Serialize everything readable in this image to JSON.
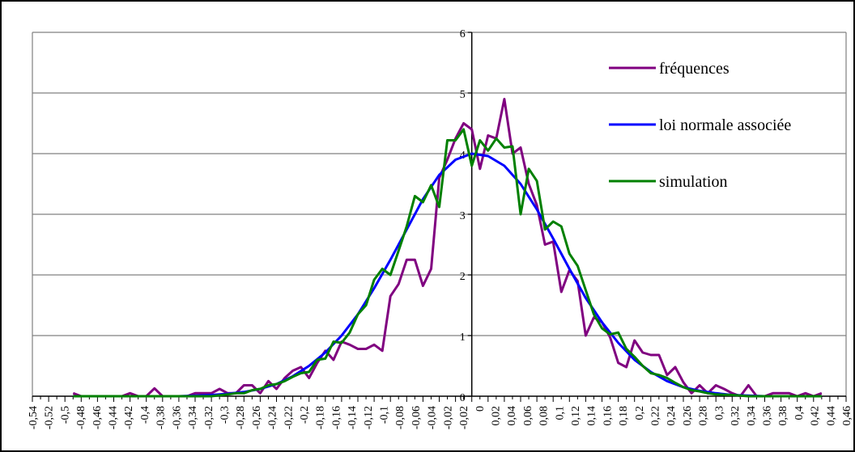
{
  "chart_data": {
    "type": "line",
    "title": "",
    "xlabel": "",
    "ylabel": "",
    "xlim": [
      -0.54,
      0.46
    ],
    "ylim": [
      0,
      6
    ],
    "grid": true,
    "legend_position": "top-right",
    "y_ticks": [
      "0",
      "1",
      "2",
      "3",
      "4",
      "5",
      "6"
    ],
    "x_ticks": [
      "-0,54",
      "-0,52",
      "-0,5",
      "-0,48",
      "-0,46",
      "-0,44",
      "-0,42",
      "-0,4",
      "-0,38",
      "-0,36",
      "-0,34",
      "-0,32",
      "-0,3",
      "-0,28",
      "-0,26",
      "-0,24",
      "-0,22",
      "-0,2",
      "-0,18",
      "-0,16",
      "-0,14",
      "-0,12",
      "-0,1",
      "-0,08",
      "-0,06",
      "-0,04",
      "-0,02",
      "-0,02",
      "0",
      "0,02",
      "0,04",
      "0,06",
      "0,08",
      "0,1",
      "0,12",
      "0,14",
      "0,16",
      "0,18",
      "0,2",
      "0,22",
      "0,24",
      "0,26",
      "0,28",
      "0,3",
      "0,32",
      "0,34",
      "0,36",
      "0,38",
      "0,4",
      "0,42",
      "0,44",
      "0,46"
    ],
    "series": [
      {
        "name": "fréquences",
        "color": "#800080",
        "points": [
          [
            -0.49,
            0.05
          ],
          [
            -0.48,
            0
          ],
          [
            -0.47,
            0
          ],
          [
            -0.46,
            0
          ],
          [
            -0.45,
            0
          ],
          [
            -0.44,
            0
          ],
          [
            -0.43,
            0
          ],
          [
            -0.42,
            0.05
          ],
          [
            -0.41,
            0
          ],
          [
            -0.4,
            0
          ],
          [
            -0.39,
            0.13
          ],
          [
            -0.38,
            0
          ],
          [
            -0.37,
            0
          ],
          [
            -0.36,
            0
          ],
          [
            -0.35,
            0
          ],
          [
            -0.34,
            0.05
          ],
          [
            -0.33,
            0.05
          ],
          [
            -0.32,
            0.05
          ],
          [
            -0.31,
            0.12
          ],
          [
            -0.3,
            0.05
          ],
          [
            -0.29,
            0.05
          ],
          [
            -0.28,
            0.18
          ],
          [
            -0.27,
            0.18
          ],
          [
            -0.26,
            0.05
          ],
          [
            -0.25,
            0.25
          ],
          [
            -0.24,
            0.12
          ],
          [
            -0.23,
            0.3
          ],
          [
            -0.22,
            0.42
          ],
          [
            -0.21,
            0.48
          ],
          [
            -0.2,
            0.3
          ],
          [
            -0.19,
            0.55
          ],
          [
            -0.18,
            0.75
          ],
          [
            -0.17,
            0.6
          ],
          [
            -0.16,
            0.9
          ],
          [
            -0.15,
            0.85
          ],
          [
            -0.14,
            0.78
          ],
          [
            -0.13,
            0.78
          ],
          [
            -0.12,
            0.85
          ],
          [
            -0.11,
            0.75
          ],
          [
            -0.1,
            1.65
          ],
          [
            -0.09,
            1.85
          ],
          [
            -0.08,
            2.25
          ],
          [
            -0.07,
            2.25
          ],
          [
            -0.06,
            1.82
          ],
          [
            -0.05,
            2.1
          ],
          [
            -0.04,
            3.6
          ],
          [
            -0.03,
            3.9
          ],
          [
            -0.02,
            4.25
          ],
          [
            -0.01,
            4.5
          ],
          [
            0.0,
            4.4
          ],
          [
            0.01,
            3.75
          ],
          [
            0.02,
            4.3
          ],
          [
            0.03,
            4.25
          ],
          [
            0.04,
            4.9
          ],
          [
            0.05,
            4.0
          ],
          [
            0.06,
            4.1
          ],
          [
            0.07,
            3.5
          ],
          [
            0.08,
            3.15
          ],
          [
            0.09,
            2.5
          ],
          [
            0.1,
            2.55
          ],
          [
            0.11,
            1.72
          ],
          [
            0.12,
            2.08
          ],
          [
            0.13,
            1.9
          ],
          [
            0.14,
            1.0
          ],
          [
            0.15,
            1.3
          ],
          [
            0.16,
            1.22
          ],
          [
            0.17,
            0.97
          ],
          [
            0.18,
            0.55
          ],
          [
            0.19,
            0.48
          ],
          [
            0.2,
            0.92
          ],
          [
            0.21,
            0.72
          ],
          [
            0.22,
            0.68
          ],
          [
            0.23,
            0.68
          ],
          [
            0.24,
            0.35
          ],
          [
            0.25,
            0.48
          ],
          [
            0.26,
            0.23
          ],
          [
            0.27,
            0.05
          ],
          [
            0.28,
            0.18
          ],
          [
            0.29,
            0.05
          ],
          [
            0.3,
            0.18
          ],
          [
            0.31,
            0.12
          ],
          [
            0.32,
            0.05
          ],
          [
            0.33,
            0
          ],
          [
            0.34,
            0.18
          ],
          [
            0.35,
            0
          ],
          [
            0.36,
            0
          ],
          [
            0.37,
            0.05
          ],
          [
            0.38,
            0.05
          ],
          [
            0.39,
            0.05
          ],
          [
            0.4,
            0
          ],
          [
            0.41,
            0.05
          ],
          [
            0.42,
            0
          ],
          [
            0.43,
            0.05
          ]
        ]
      },
      {
        "name": "loi normale associée",
        "color": "#0000ff",
        "points": [
          [
            -0.49,
            0
          ],
          [
            -0.4,
            0
          ],
          [
            -0.36,
            0
          ],
          [
            -0.32,
            0.02
          ],
          [
            -0.3,
            0.04
          ],
          [
            -0.28,
            0.07
          ],
          [
            -0.26,
            0.12
          ],
          [
            -0.24,
            0.2
          ],
          [
            -0.22,
            0.33
          ],
          [
            -0.2,
            0.5
          ],
          [
            -0.18,
            0.72
          ],
          [
            -0.16,
            1.0
          ],
          [
            -0.14,
            1.35
          ],
          [
            -0.12,
            1.78
          ],
          [
            -0.1,
            2.25
          ],
          [
            -0.08,
            2.75
          ],
          [
            -0.06,
            3.25
          ],
          [
            -0.04,
            3.65
          ],
          [
            -0.02,
            3.9
          ],
          [
            0.0,
            4.0
          ],
          [
            0.02,
            3.96
          ],
          [
            0.04,
            3.8
          ],
          [
            0.06,
            3.5
          ],
          [
            0.08,
            3.08
          ],
          [
            0.1,
            2.6
          ],
          [
            0.12,
            2.1
          ],
          [
            0.14,
            1.62
          ],
          [
            0.16,
            1.22
          ],
          [
            0.18,
            0.88
          ],
          [
            0.2,
            0.6
          ],
          [
            0.22,
            0.4
          ],
          [
            0.24,
            0.25
          ],
          [
            0.26,
            0.15
          ],
          [
            0.28,
            0.09
          ],
          [
            0.3,
            0.05
          ],
          [
            0.32,
            0.02
          ],
          [
            0.36,
            0
          ],
          [
            0.43,
            0
          ]
        ]
      },
      {
        "name": "simulation",
        "color": "#008000",
        "points": [
          [
            -0.49,
            0
          ],
          [
            -0.45,
            0
          ],
          [
            -0.4,
            0
          ],
          [
            -0.36,
            0
          ],
          [
            -0.32,
            0
          ],
          [
            -0.3,
            0.03
          ],
          [
            -0.29,
            0.05
          ],
          [
            -0.28,
            0.05
          ],
          [
            -0.27,
            0.1
          ],
          [
            -0.26,
            0.12
          ],
          [
            -0.25,
            0.18
          ],
          [
            -0.24,
            0.2
          ],
          [
            -0.23,
            0.25
          ],
          [
            -0.22,
            0.32
          ],
          [
            -0.21,
            0.38
          ],
          [
            -0.2,
            0.4
          ],
          [
            -0.19,
            0.6
          ],
          [
            -0.18,
            0.62
          ],
          [
            -0.17,
            0.9
          ],
          [
            -0.16,
            0.88
          ],
          [
            -0.15,
            1.05
          ],
          [
            -0.14,
            1.35
          ],
          [
            -0.13,
            1.5
          ],
          [
            -0.12,
            1.92
          ],
          [
            -0.11,
            2.1
          ],
          [
            -0.1,
            2.0
          ],
          [
            -0.09,
            2.4
          ],
          [
            -0.08,
            2.8
          ],
          [
            -0.07,
            3.3
          ],
          [
            -0.06,
            3.2
          ],
          [
            -0.05,
            3.48
          ],
          [
            -0.04,
            3.12
          ],
          [
            -0.03,
            4.22
          ],
          [
            -0.02,
            4.22
          ],
          [
            -0.01,
            4.4
          ],
          [
            0.0,
            3.8
          ],
          [
            0.01,
            4.22
          ],
          [
            0.02,
            4.05
          ],
          [
            0.03,
            4.25
          ],
          [
            0.04,
            4.1
          ],
          [
            0.05,
            4.12
          ],
          [
            0.06,
            3.0
          ],
          [
            0.07,
            3.75
          ],
          [
            0.08,
            3.55
          ],
          [
            0.09,
            2.75
          ],
          [
            0.1,
            2.88
          ],
          [
            0.11,
            2.8
          ],
          [
            0.12,
            2.35
          ],
          [
            0.13,
            2.15
          ],
          [
            0.14,
            1.75
          ],
          [
            0.15,
            1.35
          ],
          [
            0.16,
            1.12
          ],
          [
            0.17,
            1.02
          ],
          [
            0.18,
            1.05
          ],
          [
            0.19,
            0.78
          ],
          [
            0.2,
            0.65
          ],
          [
            0.21,
            0.5
          ],
          [
            0.22,
            0.38
          ],
          [
            0.23,
            0.35
          ],
          [
            0.24,
            0.3
          ],
          [
            0.25,
            0.22
          ],
          [
            0.26,
            0.15
          ],
          [
            0.27,
            0.1
          ],
          [
            0.28,
            0.08
          ],
          [
            0.29,
            0.05
          ],
          [
            0.3,
            0.03
          ],
          [
            0.32,
            0.02
          ],
          [
            0.34,
            0
          ],
          [
            0.43,
            0
          ]
        ]
      }
    ]
  }
}
